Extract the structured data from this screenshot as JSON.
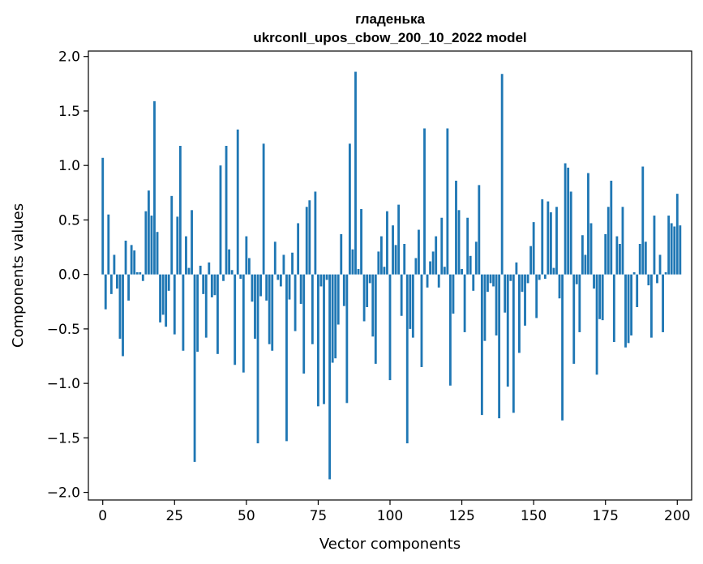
{
  "chart_data": {
    "type": "bar",
    "title_line1": "гладенька",
    "title_line2": "ukrconll_upos_cbow_200_10_2022 model",
    "xlabel": "Vector components",
    "ylabel": "Components values",
    "xlim": [
      -5,
      205
    ],
    "ylim": [
      -2.07,
      2.05
    ],
    "xticks": [
      0,
      25,
      50,
      75,
      100,
      125,
      150,
      175,
      200
    ],
    "xtick_labels": [
      "0",
      "25",
      "50",
      "75",
      "100",
      "125",
      "150",
      "175",
      "200"
    ],
    "yticks": [
      2.0,
      1.5,
      1.0,
      0.5,
      0.0,
      -0.5,
      -1.0,
      -1.5,
      -2.0
    ],
    "ytick_labels": [
      "2.0",
      "1.5",
      "1.0",
      "0.5",
      "0.0",
      "−0.5",
      "−1.0",
      "−1.5",
      "−2.0"
    ],
    "bar_color": "#1f77b4",
    "values": [
      1.07,
      -0.32,
      0.55,
      -0.18,
      0.18,
      -0.13,
      -0.59,
      -0.75,
      0.31,
      -0.24,
      0.27,
      0.22,
      0.02,
      0.02,
      -0.06,
      0.58,
      0.77,
      0.54,
      1.59,
      0.39,
      -0.44,
      -0.37,
      -0.48,
      -0.15,
      0.72,
      -0.55,
      0.53,
      1.18,
      -0.7,
      0.35,
      0.06,
      0.59,
      -1.72,
      -0.71,
      0.08,
      -0.18,
      -0.58,
      0.11,
      -0.21,
      -0.19,
      -0.73,
      1.0,
      -0.06,
      1.18,
      0.23,
      0.04,
      -0.83,
      1.33,
      -0.04,
      -0.9,
      0.35,
      0.15,
      -0.25,
      -0.59,
      -1.55,
      -0.2,
      1.2,
      -0.24,
      -0.64,
      -0.7,
      0.3,
      -0.05,
      -0.11,
      0.18,
      -1.53,
      -0.23,
      0.2,
      -0.52,
      0.47,
      -0.27,
      -0.91,
      0.62,
      0.68,
      -0.64,
      0.76,
      -1.21,
      -0.11,
      -1.19,
      -0.05,
      -1.88,
      -0.81,
      -0.77,
      -0.46,
      0.37,
      -0.29,
      -1.18,
      1.2,
      0.23,
      1.86,
      0.05,
      0.6,
      -0.43,
      -0.3,
      -0.08,
      -0.57,
      -0.82,
      0.21,
      0.35,
      0.07,
      0.58,
      -0.97,
      0.45,
      0.27,
      0.64,
      -0.38,
      0.28,
      -1.55,
      -0.5,
      -0.58,
      0.15,
      0.41,
      -0.85,
      1.34,
      -0.12,
      0.12,
      0.21,
      0.35,
      -0.12,
      0.52,
      0.07,
      1.34,
      -1.02,
      -0.36,
      0.86,
      0.59,
      0.05,
      -0.53,
      0.52,
      0.17,
      -0.15,
      0.3,
      0.82,
      -1.29,
      -0.61,
      -0.16,
      -0.08,
      -0.11,
      -0.56,
      -1.32,
      1.84,
      -0.35,
      -1.03,
      -0.06,
      -1.27,
      0.11,
      -0.72,
      -0.16,
      -0.47,
      -0.08,
      0.26,
      0.48,
      -0.4,
      -0.05,
      0.69,
      -0.04,
      0.67,
      0.57,
      0.06,
      0.62,
      -0.22,
      -1.34,
      1.02,
      0.98,
      0.76,
      -0.82,
      -0.09,
      -0.53,
      0.36,
      0.18,
      0.93,
      0.47,
      -0.13,
      -0.92,
      -0.41,
      -0.42,
      0.37,
      0.62,
      0.86,
      -0.62,
      0.35,
      0.28,
      0.62,
      -0.67,
      -0.63,
      -0.56,
      0.02,
      -0.3,
      0.28,
      0.99,
      0.3,
      -0.1,
      -0.58,
      0.54,
      -0.08,
      0.18,
      -0.53,
      0.02,
      0.54,
      0.47,
      0.44,
      0.74,
      0.45
    ]
  }
}
